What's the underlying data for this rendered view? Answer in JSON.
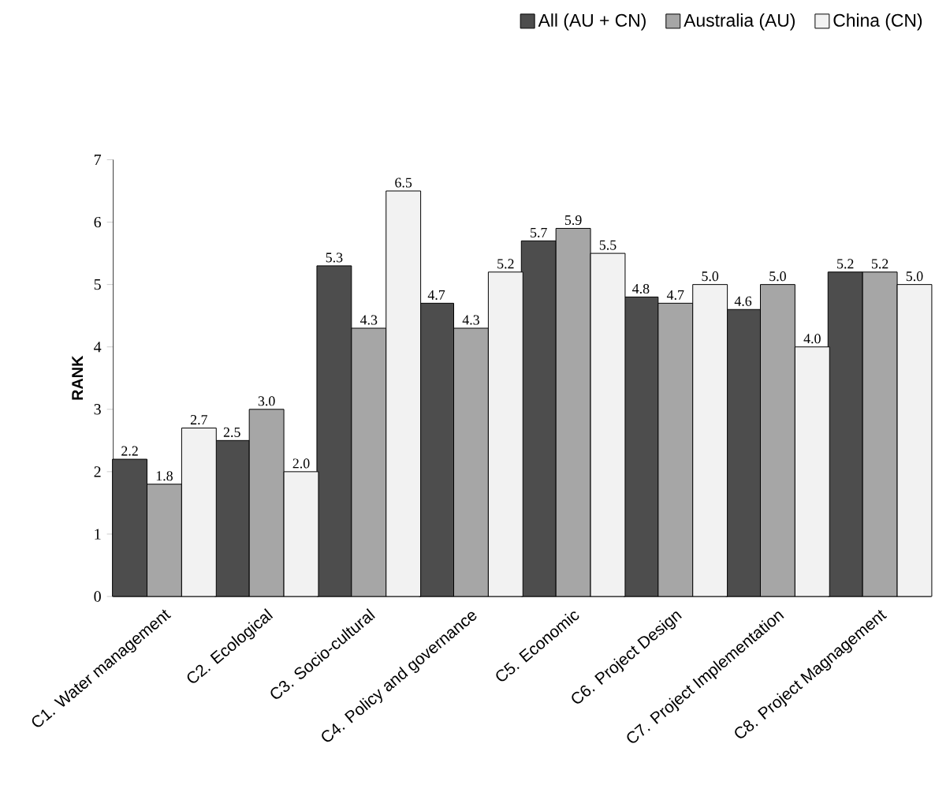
{
  "chart_data": {
    "type": "bar",
    "ylabel": "RANK",
    "categories": [
      "C1. Water management",
      "C2. Ecological",
      "C3. Socio-cultural",
      "C4. Policy and governance",
      "C5. Economic",
      "C6. Project Design",
      "C7. Project Implementation",
      "C8. Project Magnagement"
    ],
    "series": [
      {
        "name": "All (AU + CN)",
        "color": "#4d4d4d",
        "values": [
          2.2,
          2.5,
          5.3,
          4.7,
          5.7,
          4.8,
          4.6,
          5.2
        ],
        "value_labels": [
          "2.2",
          "2.5",
          "5.3",
          "4.7",
          "5.7",
          "4.8",
          "4.6",
          "5.2"
        ]
      },
      {
        "name": "Australia (AU)",
        "color": "#a6a6a6",
        "values": [
          1.8,
          3.0,
          4.3,
          4.3,
          5.9,
          4.7,
          5.0,
          5.2
        ],
        "value_labels": [
          "1.8",
          "3.0",
          "4.3",
          "4.3",
          "5.9",
          "4.7",
          "5.0",
          "5.2"
        ]
      },
      {
        "name": "China (CN)",
        "color": "#f2f2f2",
        "values": [
          2.7,
          2.0,
          6.5,
          5.2,
          5.5,
          5.0,
          4.0,
          5.0
        ],
        "value_labels": [
          "2.7",
          "2.0",
          "6.5",
          "5.2",
          "5.5",
          "5.0",
          "4.0",
          "5.0"
        ]
      }
    ],
    "ylim": [
      0,
      7
    ],
    "yticks": [
      0,
      1,
      2,
      3,
      4,
      5,
      6,
      7
    ],
    "legend": "top right",
    "grid": false
  }
}
